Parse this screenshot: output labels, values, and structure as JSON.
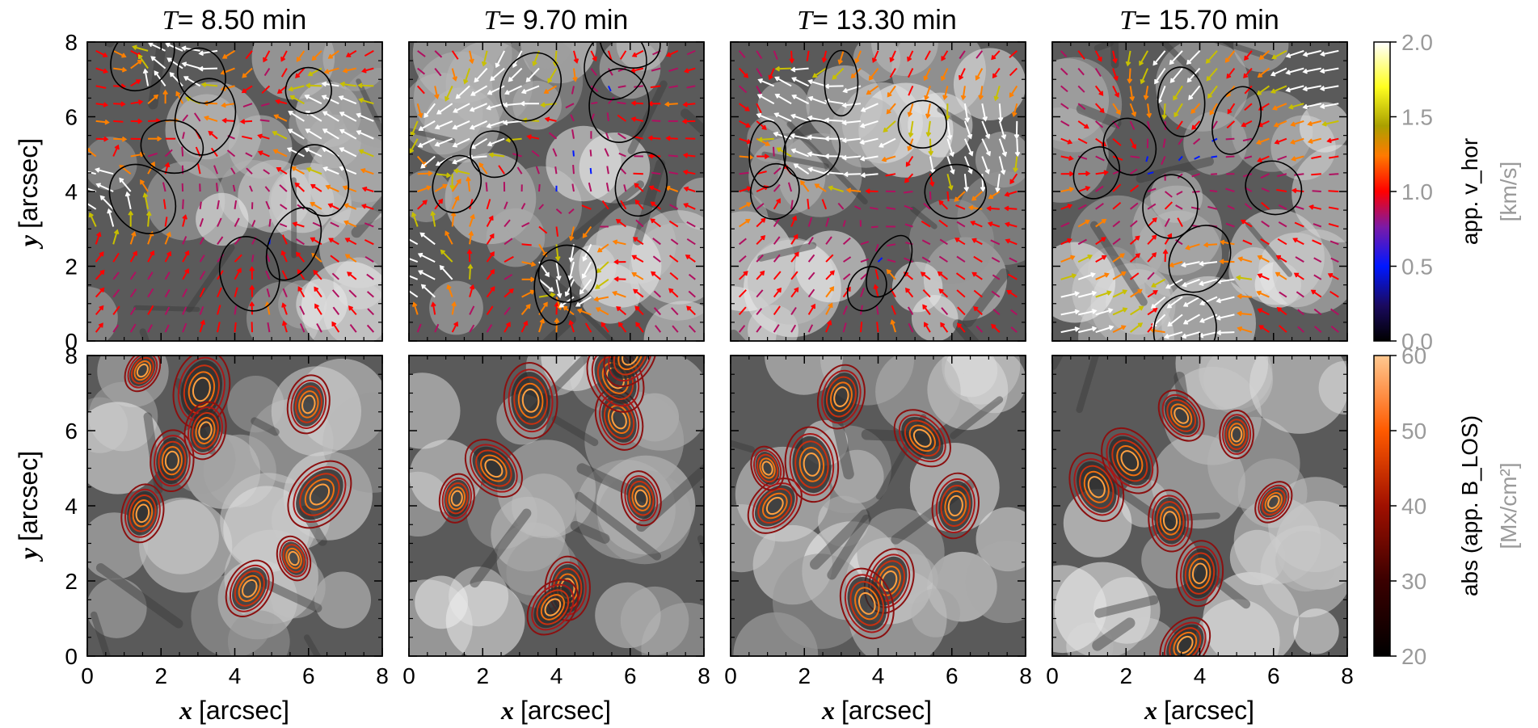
{
  "chart_data": {
    "type": "heatmap",
    "panels_top": [
      {
        "title_var": "T",
        "title_value": "= 8.50 min"
      },
      {
        "title_var": "T",
        "title_value": "= 9.70 min"
      },
      {
        "title_var": "T",
        "title_value": "= 13.30 min"
      },
      {
        "title_var": "T",
        "title_value": "= 15.70 min"
      }
    ],
    "x_ticks": [
      "0",
      "2",
      "4",
      "6",
      "8"
    ],
    "y_ticks": [
      "0",
      "2",
      "4",
      "6",
      "8"
    ],
    "xlim": [
      0,
      8
    ],
    "ylim": [
      0,
      8
    ],
    "xlabel_var": "x",
    "xlabel_unit": "[arcsec]",
    "ylabel_var": "y",
    "ylabel_unit": "[arcsec]",
    "colorbar_top": {
      "label": "app. v_hor",
      "unit": "[km/s]",
      "ticks": [
        "0.0",
        "0.5",
        "1.0",
        "1.5",
        "2.0"
      ],
      "range": [
        0,
        2.0
      ]
    },
    "colorbar_bottom": {
      "label": "abs (app. B_LOS)",
      "unit": "[Mx/cm²]",
      "ticks": [
        "20",
        "30",
        "40",
        "50",
        "60"
      ],
      "range": [
        20,
        60
      ]
    },
    "blobs": [
      [
        [
          1.5,
          3.8
        ],
        [
          2.3,
          5.2
        ],
        [
          6.0,
          6.7
        ],
        [
          6.3,
          4.3
        ],
        [
          4.4,
          1.8
        ],
        [
          3.1,
          7.1
        ],
        [
          3.2,
          6.0
        ],
        [
          5.6,
          2.6
        ],
        [
          1.5,
          7.6
        ]
      ],
      [
        [
          1.3,
          4.2
        ],
        [
          2.3,
          5.0
        ],
        [
          5.7,
          6.3
        ],
        [
          6.3,
          4.2
        ],
        [
          4.3,
          1.8
        ],
        [
          5.6,
          7.4
        ],
        [
          3.3,
          6.8
        ],
        [
          3.9,
          1.3
        ],
        [
          6.0,
          8.0
        ]
      ],
      [
        [
          1.2,
          4.0
        ],
        [
          2.2,
          5.1
        ],
        [
          5.2,
          5.8
        ],
        [
          6.1,
          4.0
        ],
        [
          4.3,
          2.0
        ],
        [
          3.7,
          1.4
        ],
        [
          3.0,
          6.9
        ],
        [
          1.0,
          5.0
        ]
      ],
      [
        [
          1.2,
          4.5
        ],
        [
          2.1,
          5.2
        ],
        [
          6.0,
          4.1
        ],
        [
          5.0,
          5.9
        ],
        [
          4.0,
          2.2
        ],
        [
          3.2,
          3.6
        ],
        [
          3.5,
          6.4
        ],
        [
          3.6,
          0.3
        ]
      ]
    ],
    "flows": [
      [
        [
          6.8,
          5.6,
          -1,
          1,
          2.0
        ],
        [
          0.4,
          4.0,
          -1,
          0,
          1.6
        ],
        [
          2.5,
          7.5,
          -1,
          1,
          1.6
        ]
      ],
      [
        [
          1.2,
          5.5,
          -1,
          0,
          2.0
        ],
        [
          2.8,
          6.8,
          -1,
          0,
          1.8
        ],
        [
          4.5,
          1.8,
          0,
          -1,
          1.5
        ],
        [
          0.3,
          2.0,
          -1,
          0,
          1.7
        ]
      ],
      [
        [
          2.0,
          6.2,
          -1,
          1,
          1.9
        ],
        [
          3.2,
          5.5,
          -1,
          -0.2,
          1.9
        ],
        [
          6.6,
          5.4,
          1,
          -1,
          1.8
        ]
      ],
      [
        [
          4.0,
          1.0,
          -1,
          -1,
          2.0
        ],
        [
          7.5,
          7.2,
          -1,
          0,
          1.7
        ],
        [
          3.5,
          7.7,
          -1,
          -0.5,
          1.5
        ],
        [
          0.4,
          0.5,
          1,
          0,
          1.6
        ]
      ]
    ]
  }
}
